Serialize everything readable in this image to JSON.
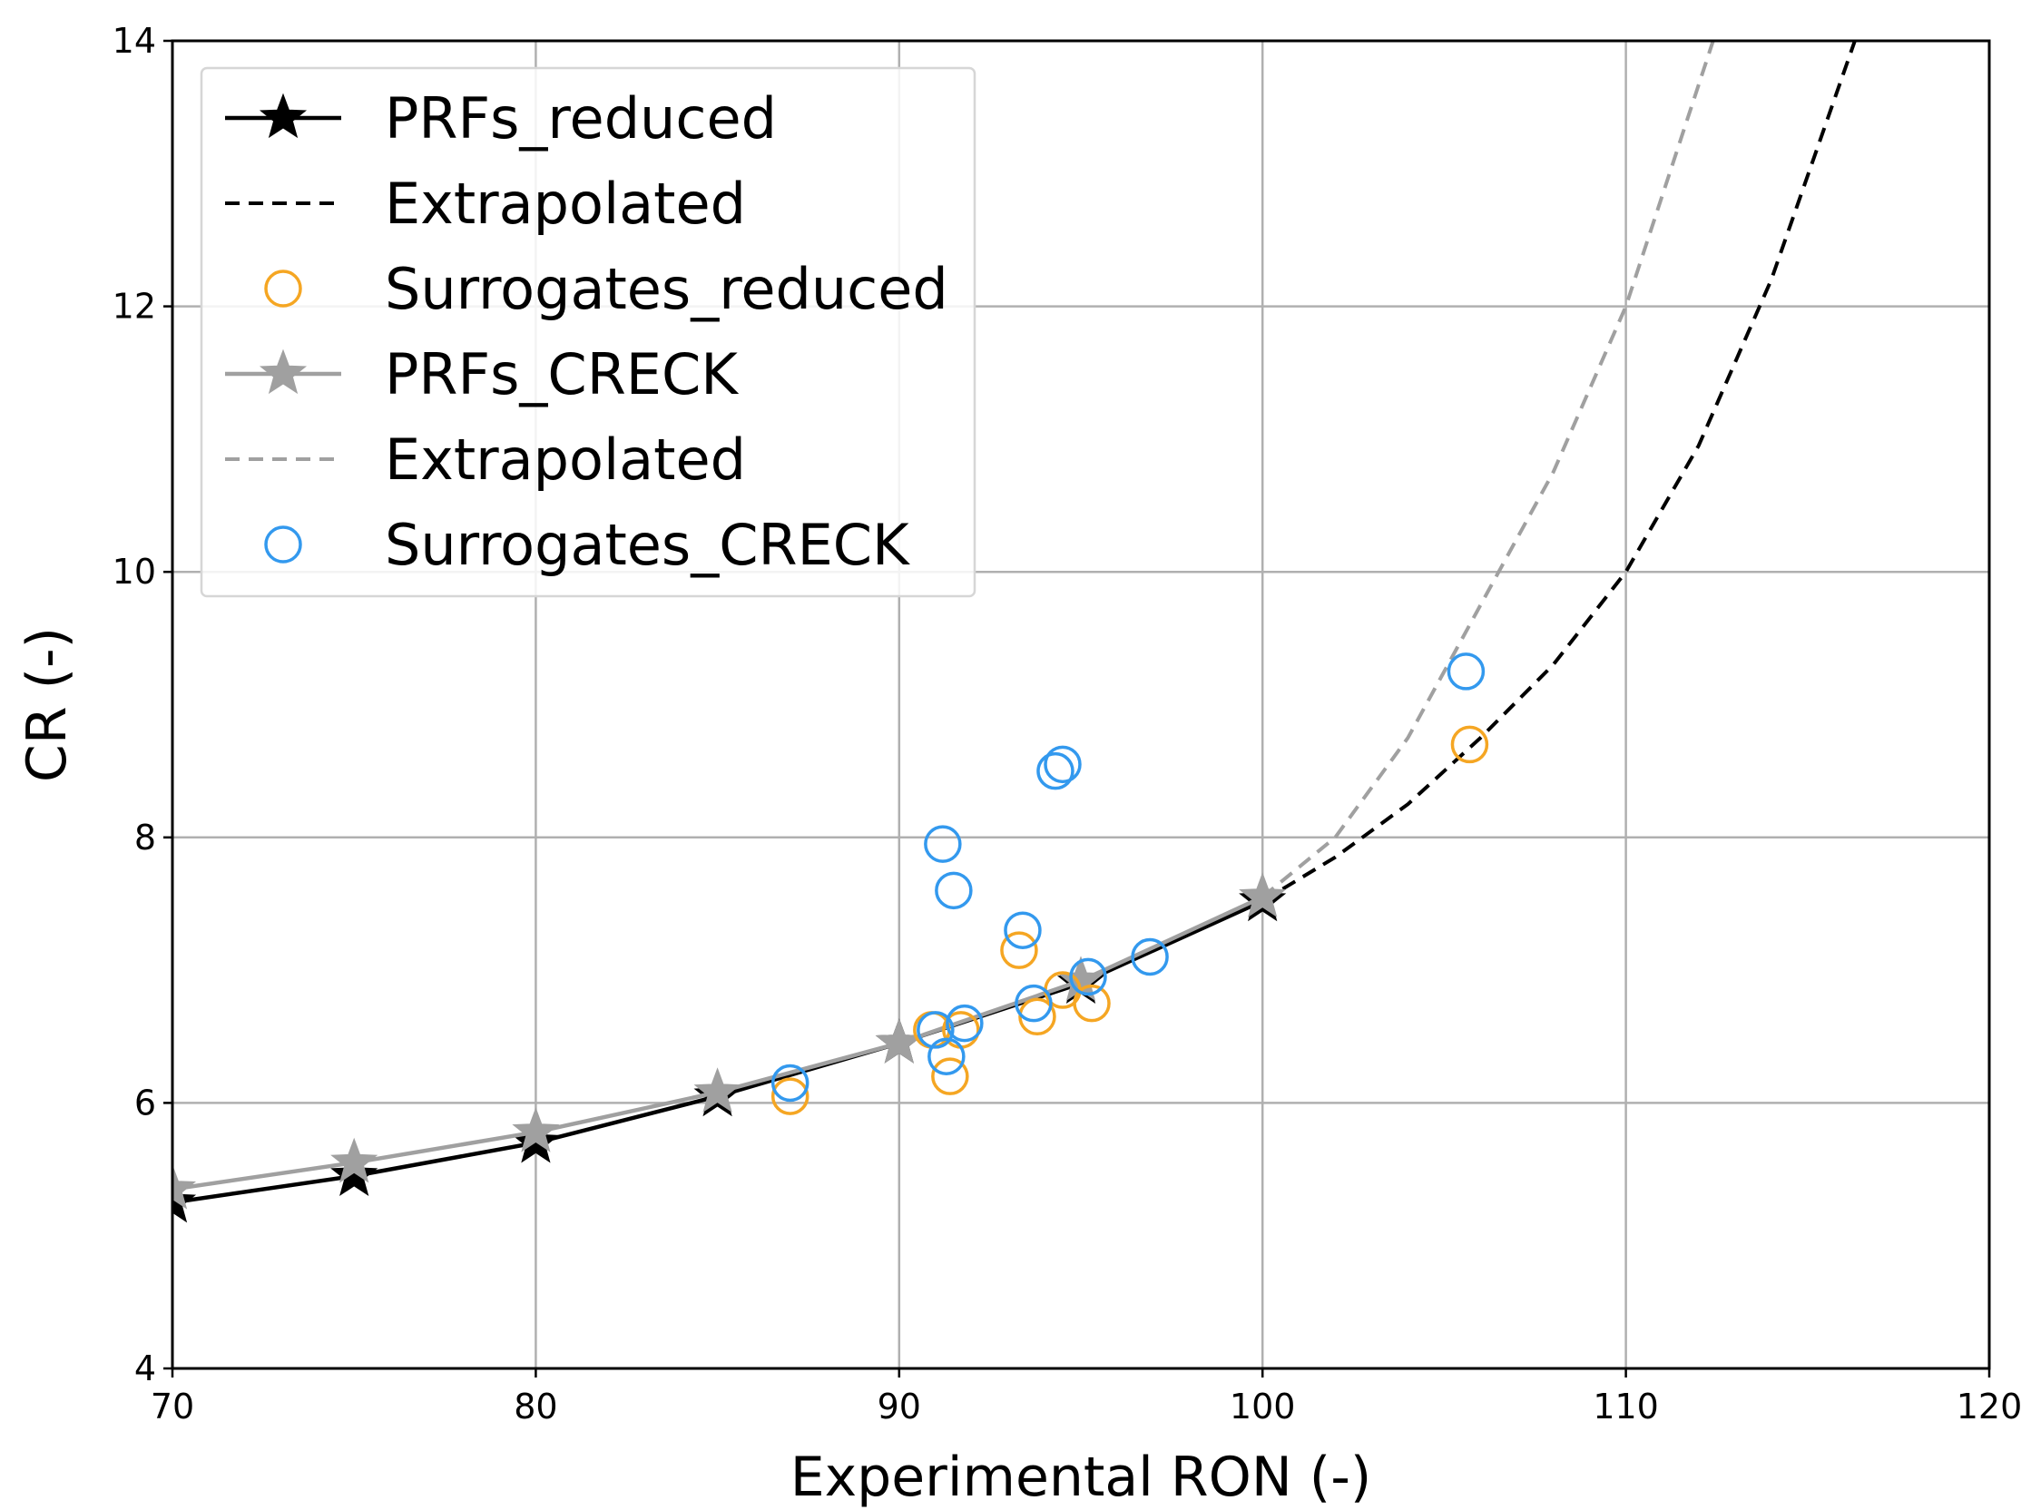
{
  "chart_data": {
    "type": "line",
    "title": "",
    "xlabel": "Experimental RON (-)",
    "ylabel": "CR (-)",
    "xlim": [
      70,
      120
    ],
    "ylim": [
      4,
      14
    ],
    "xticks": [
      70,
      80,
      90,
      100,
      110,
      120
    ],
    "yticks": [
      4,
      6,
      8,
      10,
      12,
      14
    ],
    "grid": true,
    "legend_position": "top-left",
    "colors": {
      "prf_reduced": "#000000",
      "prf_creck": "#a0a0a0",
      "surrogates_reduced": "#f5a623",
      "surrogates_creck": "#3399ee"
    },
    "series": [
      {
        "name": "PRFs_reduced",
        "style": "line-star",
        "color_key": "prf_reduced",
        "x": [
          70,
          75,
          80,
          85,
          90,
          95,
          100
        ],
        "y": [
          5.25,
          5.45,
          5.7,
          6.05,
          6.45,
          6.9,
          7.52
        ]
      },
      {
        "name": "Extrapolated",
        "style": "dashed",
        "color_key": "prf_reduced",
        "x": [
          100,
          102,
          104,
          106,
          108,
          110,
          112,
          114,
          116.3
        ],
        "y": [
          7.52,
          7.85,
          8.25,
          8.75,
          9.3,
          10.0,
          10.95,
          12.2,
          14.0
        ]
      },
      {
        "name": "Surrogates_reduced",
        "style": "circle",
        "color_key": "surrogates_reduced",
        "x": [
          87,
          90.9,
          91.4,
          91.7,
          93.3,
          93.8,
          94.5,
          95.3,
          105.7
        ],
        "y": [
          6.05,
          6.55,
          6.2,
          6.55,
          7.15,
          6.65,
          6.85,
          6.75,
          8.7
        ]
      },
      {
        "name": "PRFs_CRECK",
        "style": "line-star",
        "color_key": "prf_creck",
        "x": [
          70,
          75,
          80,
          85,
          90,
          95,
          100
        ],
        "y": [
          5.35,
          5.55,
          5.78,
          6.08,
          6.45,
          6.92,
          7.55
        ]
      },
      {
        "name": "Extrapolated",
        "style": "dashed",
        "color_key": "prf_creck",
        "x": [
          100,
          102,
          104,
          106,
          108,
          110,
          112.4
        ],
        "y": [
          7.55,
          8.0,
          8.75,
          9.75,
          10.75,
          12.0,
          14.0
        ]
      },
      {
        "name": "Surrogates_CRECK",
        "style": "circle",
        "color_key": "surrogates_creck",
        "x": [
          87,
          91,
          91.2,
          91.5,
          91.3,
          91.8,
          93.4,
          93.7,
          94.3,
          94.5,
          95.2,
          96.9,
          105.6
        ],
        "y": [
          6.15,
          6.55,
          7.95,
          7.6,
          6.35,
          6.6,
          7.3,
          6.75,
          8.5,
          8.55,
          6.95,
          7.1,
          9.25
        ]
      }
    ]
  }
}
